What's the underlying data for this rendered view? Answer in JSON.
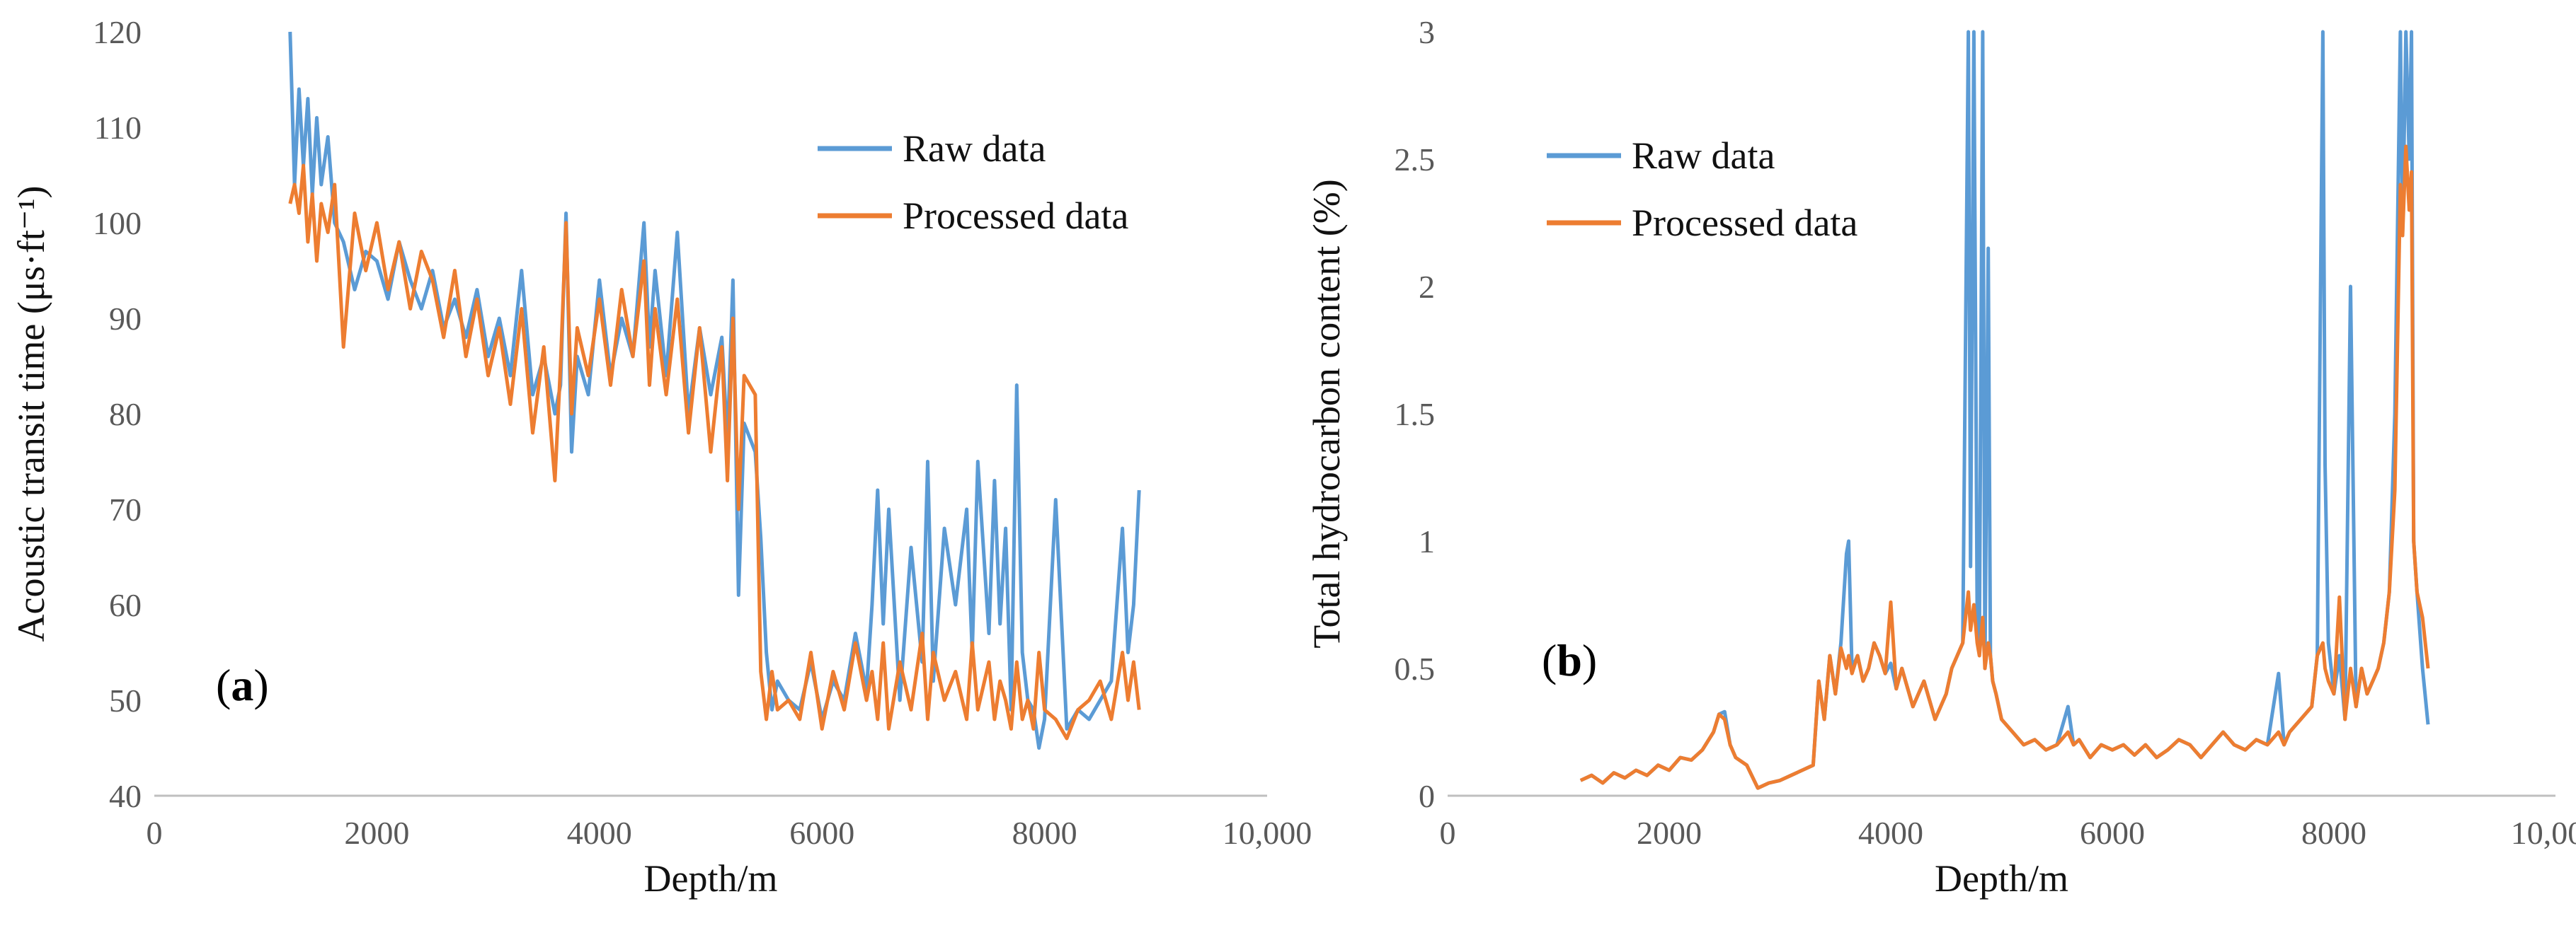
{
  "colors": {
    "raw": "#5B9BD5",
    "processed": "#ED7D31",
    "axis": "#BFBFBF",
    "text": "#595959"
  },
  "chart_data": [
    {
      "id": "a",
      "type": "line",
      "panel_label": {
        "open": "(",
        "letter": "a",
        "close": ")"
      },
      "xlabel": "Depth/m",
      "ylabel": "Acoustic transit time (μs·ft⁻¹)",
      "xlim": [
        0,
        10000
      ],
      "ylim": [
        40,
        120
      ],
      "x_ticks": [
        0,
        2000,
        4000,
        6000,
        8000,
        10000
      ],
      "x_tick_labels": [
        "0",
        "2000",
        "4000",
        "6000",
        "8000",
        "10,000"
      ],
      "y_ticks": [
        40,
        50,
        60,
        70,
        80,
        90,
        100,
        110,
        120
      ],
      "y_tick_labels": [
        "40",
        "50",
        "60",
        "70",
        "80",
        "90",
        "100",
        "110",
        "120"
      ],
      "legend_position": "top-right",
      "series": [
        {
          "name": "Raw data",
          "x": [
            1220,
            1260,
            1300,
            1340,
            1380,
            1420,
            1460,
            1500,
            1560,
            1620,
            1700,
            1800,
            1900,
            2000,
            2100,
            2200,
            2300,
            2400,
            2500,
            2600,
            2700,
            2800,
            2900,
            3000,
            3100,
            3200,
            3300,
            3400,
            3500,
            3600,
            3650,
            3700,
            3750,
            3800,
            3900,
            4000,
            4100,
            4200,
            4300,
            4400,
            4450,
            4500,
            4600,
            4700,
            4800,
            4900,
            5000,
            5100,
            5150,
            5200,
            5250,
            5300,
            5400,
            5450,
            5500,
            5550,
            5600,
            5700,
            5800,
            5900,
            6000,
            6100,
            6200,
            6300,
            6400,
            6450,
            6500,
            6550,
            6600,
            6700,
            6800,
            6900,
            6950,
            7000,
            7100,
            7200,
            7300,
            7350,
            7400,
            7500,
            7550,
            7600,
            7650,
            7700,
            7750,
            7800,
            7850,
            7900,
            7950,
            8000,
            8100,
            8200,
            8300,
            8400,
            8500,
            8600,
            8700,
            8750,
            8800,
            8850
          ],
          "y": [
            120,
            104,
            114,
            106,
            113,
            103,
            111,
            104,
            109,
            100,
            98,
            93,
            97,
            96,
            92,
            98,
            94,
            91,
            95,
            89,
            92,
            88,
            93,
            86,
            90,
            84,
            95,
            82,
            86,
            80,
            83,
            101,
            76,
            86,
            82,
            94,
            84,
            90,
            86,
            100,
            87,
            95,
            84,
            99,
            80,
            89,
            82,
            88,
            77,
            94,
            61,
            79,
            76,
            67,
            55,
            49,
            52,
            50,
            49,
            54,
            48,
            52,
            50,
            57,
            51,
            60,
            72,
            58,
            70,
            50,
            66,
            54,
            75,
            52,
            68,
            60,
            70,
            55,
            75,
            57,
            73,
            58,
            68,
            49,
            83,
            55,
            50,
            49,
            45,
            48,
            71,
            47,
            49,
            48,
            50,
            52,
            68,
            55,
            60,
            72
          ]
        },
        {
          "name": "Processed data",
          "x": [
            1220,
            1260,
            1300,
            1340,
            1380,
            1420,
            1460,
            1500,
            1560,
            1620,
            1700,
            1800,
            1900,
            2000,
            2100,
            2200,
            2300,
            2400,
            2500,
            2600,
            2700,
            2800,
            2900,
            3000,
            3100,
            3200,
            3300,
            3400,
            3500,
            3600,
            3650,
            3700,
            3750,
            3800,
            3900,
            4000,
            4100,
            4200,
            4300,
            4400,
            4450,
            4500,
            4600,
            4700,
            4800,
            4900,
            5000,
            5100,
            5150,
            5200,
            5250,
            5300,
            5400,
            5450,
            5500,
            5550,
            5600,
            5700,
            5800,
            5900,
            6000,
            6100,
            6200,
            6300,
            6400,
            6450,
            6500,
            6550,
            6600,
            6700,
            6800,
            6900,
            6950,
            7000,
            7100,
            7200,
            7300,
            7350,
            7400,
            7500,
            7550,
            7600,
            7650,
            7700,
            7750,
            7800,
            7850,
            7900,
            7950,
            8000,
            8100,
            8200,
            8300,
            8400,
            8500,
            8600,
            8700,
            8750,
            8800,
            8850
          ],
          "y": [
            102,
            104,
            101,
            106,
            98,
            103,
            96,
            102,
            99,
            104,
            87,
            101,
            95,
            100,
            93,
            98,
            91,
            97,
            94,
            88,
            95,
            86,
            92,
            84,
            89,
            81,
            91,
            78,
            87,
            73,
            85,
            100,
            80,
            89,
            84,
            92,
            83,
            93,
            86,
            96,
            83,
            91,
            82,
            92,
            78,
            89,
            76,
            87,
            73,
            90,
            70,
            84,
            82,
            53,
            48,
            53,
            49,
            50,
            48,
            55,
            47,
            53,
            49,
            56,
            50,
            53,
            48,
            56,
            47,
            54,
            49,
            57,
            48,
            55,
            50,
            53,
            48,
            56,
            49,
            54,
            48,
            52,
            50,
            47,
            54,
            48,
            50,
            47,
            55,
            49,
            48,
            46,
            49,
            50,
            52,
            48,
            55,
            50,
            54,
            49
          ]
        }
      ]
    },
    {
      "id": "b",
      "type": "line",
      "panel_label": {
        "open": "(",
        "letter": "b",
        "close": ")"
      },
      "xlabel": "Depth/m",
      "ylabel": "Total hydrocarbon content (%)",
      "xlim": [
        0,
        10000
      ],
      "ylim": [
        0,
        3
      ],
      "x_ticks": [
        0,
        2000,
        4000,
        6000,
        8000,
        10000
      ],
      "x_tick_labels": [
        "0",
        "2000",
        "4000",
        "6000",
        "8000",
        "10,000"
      ],
      "y_ticks": [
        0,
        0.5,
        1,
        1.5,
        2,
        2.5,
        3
      ],
      "y_tick_labels": [
        "0",
        "0.5",
        "1",
        "1.5",
        "2",
        "2.5",
        "3"
      ],
      "legend_position": "top-left",
      "series": [
        {
          "name": "Raw data",
          "x": [
            1200,
            1300,
            1400,
            1500,
            1600,
            1700,
            1800,
            1900,
            2000,
            2100,
            2200,
            2300,
            2400,
            2450,
            2500,
            2550,
            2600,
            2700,
            2800,
            2900,
            3000,
            3100,
            3200,
            3300,
            3350,
            3400,
            3450,
            3500,
            3550,
            3600,
            3620,
            3650,
            3700,
            3750,
            3800,
            3850,
            3900,
            3950,
            4000,
            4050,
            4100,
            4200,
            4300,
            4400,
            4500,
            4550,
            4600,
            4650,
            4700,
            4720,
            4750,
            4780,
            4800,
            4830,
            4850,
            4880,
            4900,
            4920,
            4950,
            5000,
            5100,
            5200,
            5300,
            5400,
            5500,
            5600,
            5650,
            5700,
            5800,
            5900,
            6000,
            6100,
            6200,
            6300,
            6400,
            6500,
            6600,
            6700,
            6800,
            6900,
            7000,
            7100,
            7200,
            7300,
            7400,
            7500,
            7550,
            7600,
            7700,
            7800,
            7850,
            7900,
            7920,
            7950,
            8000,
            8050,
            8100,
            8150,
            8200,
            8250,
            8300,
            8350,
            8400,
            8450,
            8500,
            8550,
            8600,
            8620,
            8650,
            8680,
            8700,
            8720,
            8750,
            8800,
            8850
          ],
          "y": [
            0.06,
            0.08,
            0.05,
            0.09,
            0.07,
            0.1,
            0.08,
            0.12,
            0.1,
            0.15,
            0.14,
            0.18,
            0.25,
            0.32,
            0.33,
            0.2,
            0.15,
            0.12,
            0.03,
            0.05,
            0.06,
            0.08,
            0.1,
            0.12,
            0.45,
            0.3,
            0.55,
            0.4,
            0.6,
            0.95,
            1.0,
            0.5,
            0.55,
            0.45,
            0.5,
            0.6,
            0.55,
            0.48,
            0.52,
            0.42,
            0.5,
            0.35,
            0.45,
            0.3,
            0.4,
            0.5,
            0.55,
            0.6,
            3.0,
            0.9,
            3.0,
            0.7,
            0.6,
            3.0,
            0.5,
            2.15,
            0.55,
            0.45,
            0.4,
            0.3,
            0.25,
            0.2,
            0.22,
            0.18,
            0.2,
            0.35,
            0.2,
            0.22,
            0.15,
            0.2,
            0.18,
            0.2,
            0.16,
            0.2,
            0.15,
            0.18,
            0.22,
            0.2,
            0.15,
            0.2,
            0.25,
            0.2,
            0.18,
            0.22,
            0.2,
            0.48,
            0.2,
            0.25,
            0.3,
            0.35,
            0.55,
            3.0,
            1.3,
            0.6,
            0.4,
            0.55,
            0.3,
            2.0,
            0.35,
            0.5,
            0.4,
            0.45,
            0.5,
            0.6,
            0.8,
            1.5,
            3.0,
            2.2,
            3.0,
            2.5,
            3.0,
            1.0,
            0.8,
            0.5,
            0.28
          ]
        },
        {
          "name": "Processed data",
          "x": [
            1200,
            1300,
            1400,
            1500,
            1600,
            1700,
            1800,
            1900,
            2000,
            2100,
            2200,
            2300,
            2400,
            2450,
            2500,
            2550,
            2600,
            2700,
            2800,
            2900,
            3000,
            3100,
            3200,
            3300,
            3350,
            3400,
            3450,
            3500,
            3550,
            3600,
            3620,
            3650,
            3700,
            3750,
            3800,
            3850,
            3900,
            3950,
            4000,
            4050,
            4100,
            4200,
            4300,
            4400,
            4500,
            4550,
            4600,
            4650,
            4700,
            4720,
            4750,
            4780,
            4800,
            4830,
            4850,
            4880,
            4900,
            4920,
            4950,
            5000,
            5100,
            5200,
            5300,
            5400,
            5500,
            5600,
            5650,
            5700,
            5800,
            5900,
            6000,
            6100,
            6200,
            6300,
            6400,
            6500,
            6600,
            6700,
            6800,
            6900,
            7000,
            7100,
            7200,
            7300,
            7400,
            7500,
            7550,
            7600,
            7700,
            7800,
            7850,
            7900,
            7920,
            7950,
            8000,
            8050,
            8100,
            8150,
            8200,
            8250,
            8300,
            8350,
            8400,
            8450,
            8500,
            8550,
            8600,
            8620,
            8650,
            8680,
            8700,
            8720,
            8750,
            8800,
            8850
          ],
          "y": [
            0.06,
            0.08,
            0.05,
            0.09,
            0.07,
            0.1,
            0.08,
            0.12,
            0.1,
            0.15,
            0.14,
            0.18,
            0.25,
            0.32,
            0.3,
            0.2,
            0.15,
            0.12,
            0.03,
            0.05,
            0.06,
            0.08,
            0.1,
            0.12,
            0.45,
            0.3,
            0.55,
            0.4,
            0.58,
            0.5,
            0.55,
            0.48,
            0.55,
            0.45,
            0.5,
            0.6,
            0.55,
            0.48,
            0.76,
            0.42,
            0.5,
            0.35,
            0.45,
            0.3,
            0.4,
            0.5,
            0.55,
            0.6,
            0.8,
            0.65,
            0.75,
            0.6,
            0.55,
            0.7,
            0.5,
            0.6,
            0.55,
            0.45,
            0.4,
            0.3,
            0.25,
            0.2,
            0.22,
            0.18,
            0.2,
            0.25,
            0.2,
            0.22,
            0.15,
            0.2,
            0.18,
            0.2,
            0.16,
            0.2,
            0.15,
            0.18,
            0.22,
            0.2,
            0.15,
            0.2,
            0.25,
            0.2,
            0.18,
            0.22,
            0.2,
            0.25,
            0.2,
            0.25,
            0.3,
            0.35,
            0.55,
            0.6,
            0.5,
            0.45,
            0.4,
            0.78,
            0.3,
            0.5,
            0.35,
            0.5,
            0.4,
            0.45,
            0.5,
            0.6,
            0.8,
            1.2,
            2.4,
            2.2,
            2.55,
            2.3,
            2.45,
            1.0,
            0.8,
            0.7,
            0.5
          ]
        }
      ]
    }
  ]
}
